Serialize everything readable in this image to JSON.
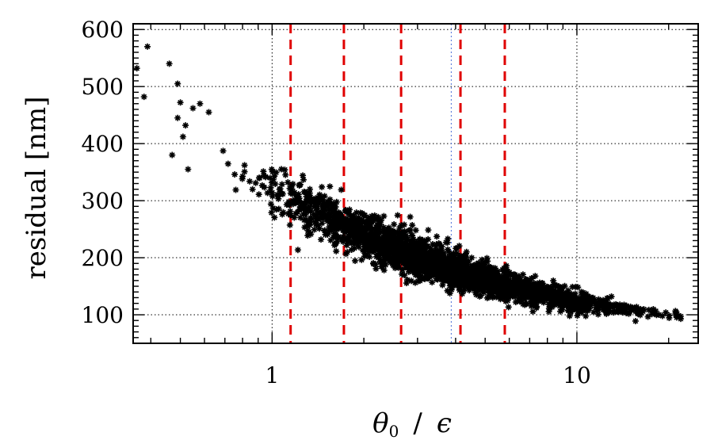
{
  "chart_data": {
    "type": "scatter",
    "title": "",
    "xlabel_parts": {
      "theta": "θ",
      "sub": "0",
      "slash": "/",
      "eps": "ϵ"
    },
    "ylabel": "residual [nm]",
    "x_scale": "log",
    "xlim": [
      0.35,
      25
    ],
    "ylim": [
      50,
      610
    ],
    "x_tick_labels": [
      {
        "value": 1,
        "label": "1"
      },
      {
        "value": 10,
        "label": "10"
      }
    ],
    "y_tick_labels": [
      {
        "value": 100,
        "label": "100"
      },
      {
        "value": 200,
        "label": "200"
      },
      {
        "value": 300,
        "label": "300"
      },
      {
        "value": 400,
        "label": "400"
      },
      {
        "value": 500,
        "label": "500"
      },
      {
        "value": 600,
        "label": "600"
      }
    ],
    "grid": true,
    "marker": "*",
    "marker_color": "#000000",
    "red_dashed_lines_x": [
      1.15,
      1.72,
      2.65,
      4.15,
      5.8
    ],
    "red_line_color": "#e00000",
    "blue_dotted_line_x": 3.87,
    "blue_line_color": "#4a6fd8",
    "outliers": [
      [
        0.36,
        532
      ],
      [
        0.39,
        570
      ],
      [
        0.38,
        482
      ],
      [
        0.46,
        540
      ],
      [
        0.49,
        505
      ],
      [
        0.5,
        472
      ],
      [
        0.55,
        462
      ],
      [
        0.52,
        432
      ],
      [
        0.47,
        380
      ],
      [
        0.58,
        470
      ],
      [
        0.62,
        455
      ],
      [
        0.53,
        355
      ],
      [
        0.49,
        445
      ],
      [
        0.51,
        412
      ]
    ],
    "trend_points": [
      {
        "x": 0.55,
        "y": 420,
        "spread": 70
      },
      {
        "x": 0.8,
        "y": 355,
        "spread": 65
      },
      {
        "x": 1.0,
        "y": 318,
        "spread": 60
      },
      {
        "x": 1.5,
        "y": 272,
        "spread": 55
      },
      {
        "x": 2.0,
        "y": 240,
        "spread": 50
      },
      {
        "x": 3.0,
        "y": 200,
        "spread": 45
      },
      {
        "x": 4.0,
        "y": 178,
        "spread": 40
      },
      {
        "x": 6.0,
        "y": 150,
        "spread": 34
      },
      {
        "x": 10.0,
        "y": 123,
        "spread": 26
      },
      {
        "x": 15.0,
        "y": 108,
        "spread": 20
      },
      {
        "x": 22.0,
        "y": 98,
        "spread": 14
      }
    ]
  }
}
